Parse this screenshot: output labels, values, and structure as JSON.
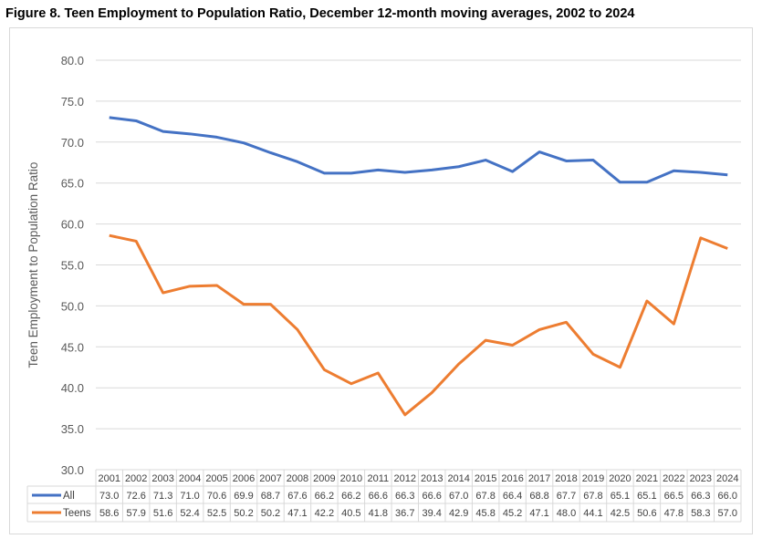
{
  "chart_data": {
    "type": "line",
    "title": "Figure 8. Teen Employment to Population Ratio, December 12-month moving averages, 2002 to 2024",
    "xlabel": "",
    "ylabel": "Teen Employment to Population Ratio",
    "ylim": [
      30,
      80
    ],
    "yticks": [
      "30.0",
      "35.0",
      "40.0",
      "45.0",
      "50.0",
      "55.0",
      "60.0",
      "65.0",
      "70.0",
      "75.0",
      "80.0"
    ],
    "grid": true,
    "legend": "data-table-below",
    "categories": [
      "2001",
      "2002",
      "2003",
      "2004",
      "2005",
      "2006",
      "2007",
      "2008",
      "2009",
      "2010",
      "2011",
      "2012",
      "2013",
      "2014",
      "2015",
      "2016",
      "2017",
      "2018",
      "2019",
      "2020",
      "2021",
      "2022",
      "2023",
      "2024"
    ],
    "series": [
      {
        "name": "All",
        "color": "#4472C4",
        "values": [
          73.0,
          72.6,
          71.3,
          71.0,
          70.6,
          69.9,
          68.7,
          67.6,
          66.2,
          66.2,
          66.6,
          66.3,
          66.6,
          67.0,
          67.8,
          66.4,
          68.8,
          67.7,
          67.8,
          65.1,
          65.1,
          66.5,
          66.3,
          66.0
        ]
      },
      {
        "name": "Teens",
        "color": "#ED7D31",
        "values": [
          58.6,
          57.9,
          51.6,
          52.4,
          52.5,
          50.2,
          50.2,
          47.1,
          42.2,
          40.5,
          41.8,
          36.7,
          39.4,
          42.9,
          45.8,
          45.2,
          47.1,
          48.0,
          44.1,
          42.5,
          50.6,
          47.8,
          58.3,
          57.0
        ]
      }
    ]
  }
}
